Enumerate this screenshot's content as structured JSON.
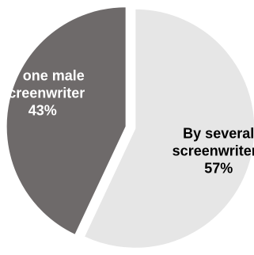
{
  "chart_data": {
    "type": "pie",
    "title": "",
    "slices": [
      {
        "label_lines": [
          "By several",
          "screenwriters"
        ],
        "percent_label": "57%",
        "value": 57,
        "color": "#e6e6e6",
        "text_color": "#000000"
      },
      {
        "label_lines": [
          "By one male",
          "screenwriter"
        ],
        "percent_label": "43%",
        "value": 43,
        "color": "#6e6a6a",
        "text_color": "#ffffff"
      }
    ],
    "start_angle_deg": 0,
    "direction": "clockwise",
    "exploded": true,
    "legend": "none"
  }
}
